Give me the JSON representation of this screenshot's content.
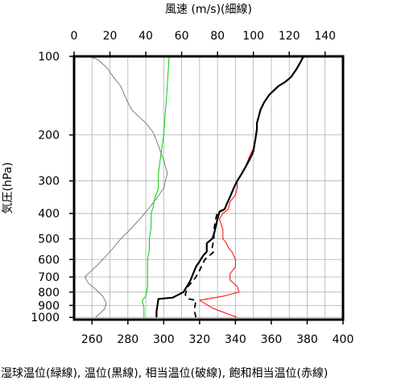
{
  "chart_data": {
    "type": "line",
    "title": "",
    "top_axis_label": "風速 (m/s)(細線)",
    "left_axis_label": "気圧(hPa)",
    "bottom_label": "湿球温位(緑線), 温位(黒線), 相当温位(破線), 飽和相当温位(赤線)",
    "x_bottom_range": [
      250,
      400
    ],
    "x_bottom_ticks": [
      "260",
      "280",
      "300",
      "320",
      "340",
      "360",
      "380",
      "400"
    ],
    "x_top_range": [
      0,
      150
    ],
    "x_top_ticks": [
      "0",
      "20",
      "40",
      "60",
      "80",
      "100",
      "120",
      "140"
    ],
    "y_scale": "log",
    "y_range": [
      1020,
      100
    ],
    "y_ticks": [
      "100",
      "200",
      "300",
      "400",
      "500",
      "600",
      "700",
      "800",
      "900",
      "1000"
    ],
    "grid": true,
    "colors": {
      "wet_bulb": "#00d000",
      "theta": "#000000",
      "theta_e": "#000000",
      "theta_es": "#ff0000",
      "wind": "#707070"
    },
    "series": [
      {
        "name": "湿球温位",
        "axis": "bottom",
        "style": "green",
        "x": [
          289,
          289,
          288,
          290,
          291,
          291,
          291,
          291,
          292,
          292,
          293,
          293,
          294,
          295,
          297,
          297,
          298,
          300,
          301,
          302,
          303
        ],
        "y": [
          1000,
          920,
          860,
          830,
          760,
          700,
          650,
          600,
          550,
          500,
          450,
          400,
          380,
          350,
          320,
          280,
          250,
          200,
          160,
          130,
          100
        ]
      },
      {
        "name": "温位",
        "axis": "bottom",
        "style": "black",
        "x": [
          296,
          296,
          297,
          305,
          311,
          313,
          315,
          316,
          318,
          320,
          322,
          324,
          324,
          327,
          328,
          329,
          330,
          331,
          334,
          335,
          337,
          339,
          341,
          343,
          345,
          347,
          349,
          350,
          351,
          352,
          352,
          353,
          354,
          356,
          359,
          364,
          368,
          371,
          374,
          376,
          378
        ],
        "y": [
          1000,
          950,
          850,
          840,
          800,
          760,
          720,
          690,
          640,
          610,
          580,
          560,
          520,
          500,
          480,
          450,
          420,
          395,
          385,
          370,
          345,
          320,
          300,
          285,
          270,
          255,
          240,
          230,
          210,
          190,
          180,
          170,
          160,
          150,
          140,
          130,
          125,
          120,
          112,
          106,
          100
        ]
      },
      {
        "name": "相当温位",
        "axis": "bottom",
        "style": "dashed",
        "x": [
          318,
          317,
          318,
          314,
          312,
          313,
          318,
          320,
          323,
          328,
          327,
          328,
          328,
          329,
          330,
          334,
          335,
          337,
          339,
          341,
          343,
          345,
          347,
          349,
          350,
          351,
          352,
          352,
          353,
          354,
          356,
          359,
          364,
          368,
          371,
          374,
          376,
          378
        ],
        "y": [
          1000,
          940,
          860,
          850,
          820,
          770,
          700,
          660,
          600,
          560,
          540,
          500,
          460,
          420,
          395,
          385,
          370,
          345,
          320,
          300,
          285,
          270,
          255,
          240,
          230,
          210,
          190,
          180,
          170,
          160,
          150,
          140,
          130,
          125,
          120,
          112,
          106,
          100
        ]
      },
      {
        "name": "飽和相当温位",
        "axis": "bottom",
        "style": "red",
        "x": [
          341,
          334,
          327,
          320,
          333,
          342,
          341,
          337,
          337,
          340,
          340,
          338,
          336,
          335,
          333,
          333,
          331,
          333,
          335,
          336,
          337,
          340,
          341,
          341,
          344,
          346,
          348,
          350,
          351,
          352,
          352,
          353,
          354,
          356,
          359,
          364,
          368,
          371,
          374,
          376,
          378
        ],
        "y": [
          1000,
          960,
          920,
          860,
          830,
          800,
          760,
          720,
          680,
          640,
          600,
          560,
          540,
          520,
          500,
          460,
          420,
          400,
          390,
          385,
          360,
          340,
          320,
          300,
          280,
          260,
          240,
          225,
          210,
          190,
          180,
          170,
          160,
          150,
          140,
          130,
          125,
          120,
          112,
          106,
          100
        ]
      },
      {
        "name": "風速",
        "axis": "top",
        "style": "gray",
        "x": [
          12,
          17,
          18,
          16,
          12,
          8,
          6,
          10,
          14,
          18,
          22,
          26,
          30,
          34,
          38,
          42,
          46,
          50,
          52,
          50,
          48,
          46,
          44,
          40,
          36,
          32,
          30,
          28,
          26,
          24,
          22,
          20,
          18,
          16,
          14,
          12,
          10,
          7,
          5
        ],
        "y": [
          1000,
          930,
          880,
          830,
          780,
          740,
          700,
          660,
          620,
          580,
          540,
          500,
          470,
          440,
          410,
          380,
          350,
          320,
          280,
          250,
          230,
          210,
          195,
          180,
          170,
          160,
          150,
          140,
          130,
          125,
          120,
          115,
          110,
          107,
          104,
          102,
          101,
          100,
          99
        ]
      }
    ]
  }
}
